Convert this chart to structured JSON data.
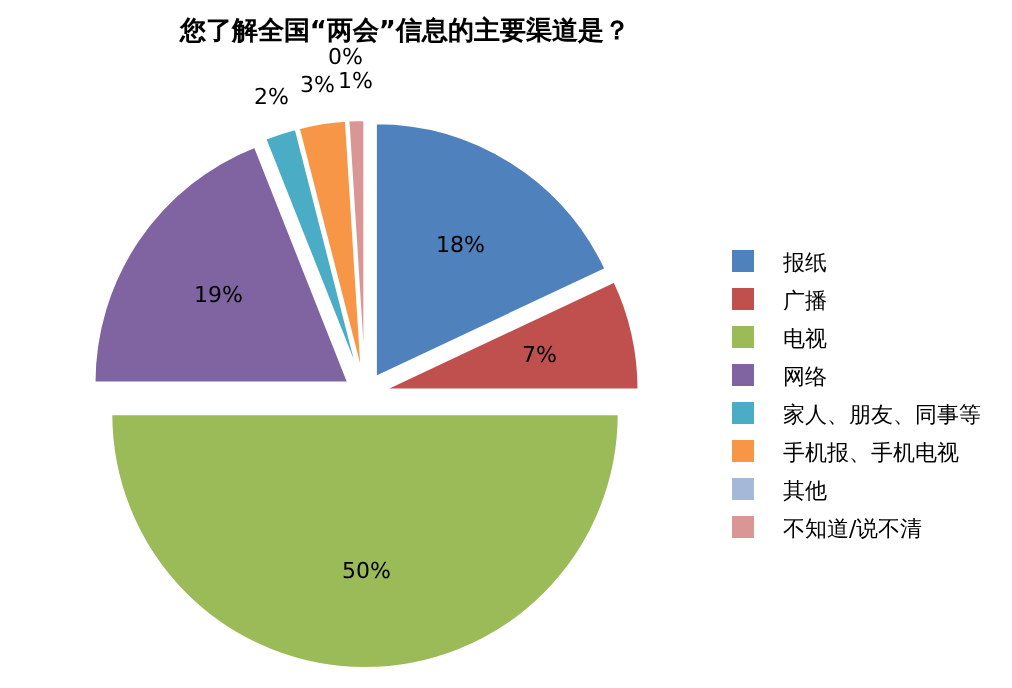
{
  "chart_data": {
    "type": "pie",
    "title": "您了解全国“两会”信息的主要渠道是？",
    "categories": [
      "报纸",
      "广播",
      "电视",
      "网络",
      "家人、朋友、同事等",
      "手机报、手机电视",
      "其他",
      "不知道/说不清"
    ],
    "values": [
      18,
      7,
      50,
      19,
      2,
      3,
      0,
      1
    ],
    "value_labels": [
      "18%",
      "7%",
      "50%",
      "19%",
      "2%",
      "3%",
      "0%",
      "1%"
    ],
    "colors": [
      "#4f81bd",
      "#c0504d",
      "#9bbb59",
      "#8064a2",
      "#4bacc6",
      "#f79646",
      "#a5b8d8",
      "#d99694"
    ],
    "legend": "right"
  }
}
